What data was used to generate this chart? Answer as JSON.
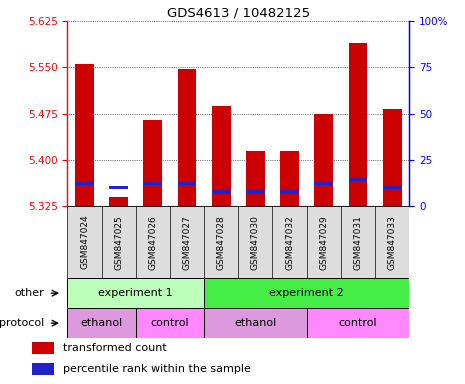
{
  "title": "GDS4613 / 10482125",
  "samples": [
    "GSM847024",
    "GSM847025",
    "GSM847026",
    "GSM847027",
    "GSM847028",
    "GSM847030",
    "GSM847032",
    "GSM847029",
    "GSM847031",
    "GSM847033"
  ],
  "red_values": [
    5.555,
    5.34,
    5.465,
    5.548,
    5.488,
    5.415,
    5.415,
    5.475,
    5.59,
    5.482
  ],
  "blue_values": [
    5.362,
    5.355,
    5.362,
    5.362,
    5.348,
    5.348,
    5.348,
    5.362,
    5.368,
    5.355
  ],
  "baseline": 5.325,
  "ylim_left": [
    5.325,
    5.625
  ],
  "ylim_right": [
    0,
    100
  ],
  "yticks_left": [
    5.325,
    5.4,
    5.475,
    5.55,
    5.625
  ],
  "yticks_right": [
    0,
    25,
    50,
    75,
    100
  ],
  "bar_color": "#cc0000",
  "blue_color": "#2222cc",
  "bar_width": 0.55,
  "exp1_color": "#bbffbb",
  "exp2_color": "#44ee44",
  "ethanol_color": "#dd99dd",
  "control_color": "#ff88ff",
  "other_label": "other",
  "protocol_label": "protocol",
  "exp1_label": "experiment 1",
  "exp2_label": "experiment 2",
  "ethanol_label": "ethanol",
  "control_label": "control",
  "legend_red": "transformed count",
  "legend_blue": "percentile rank within the sample"
}
